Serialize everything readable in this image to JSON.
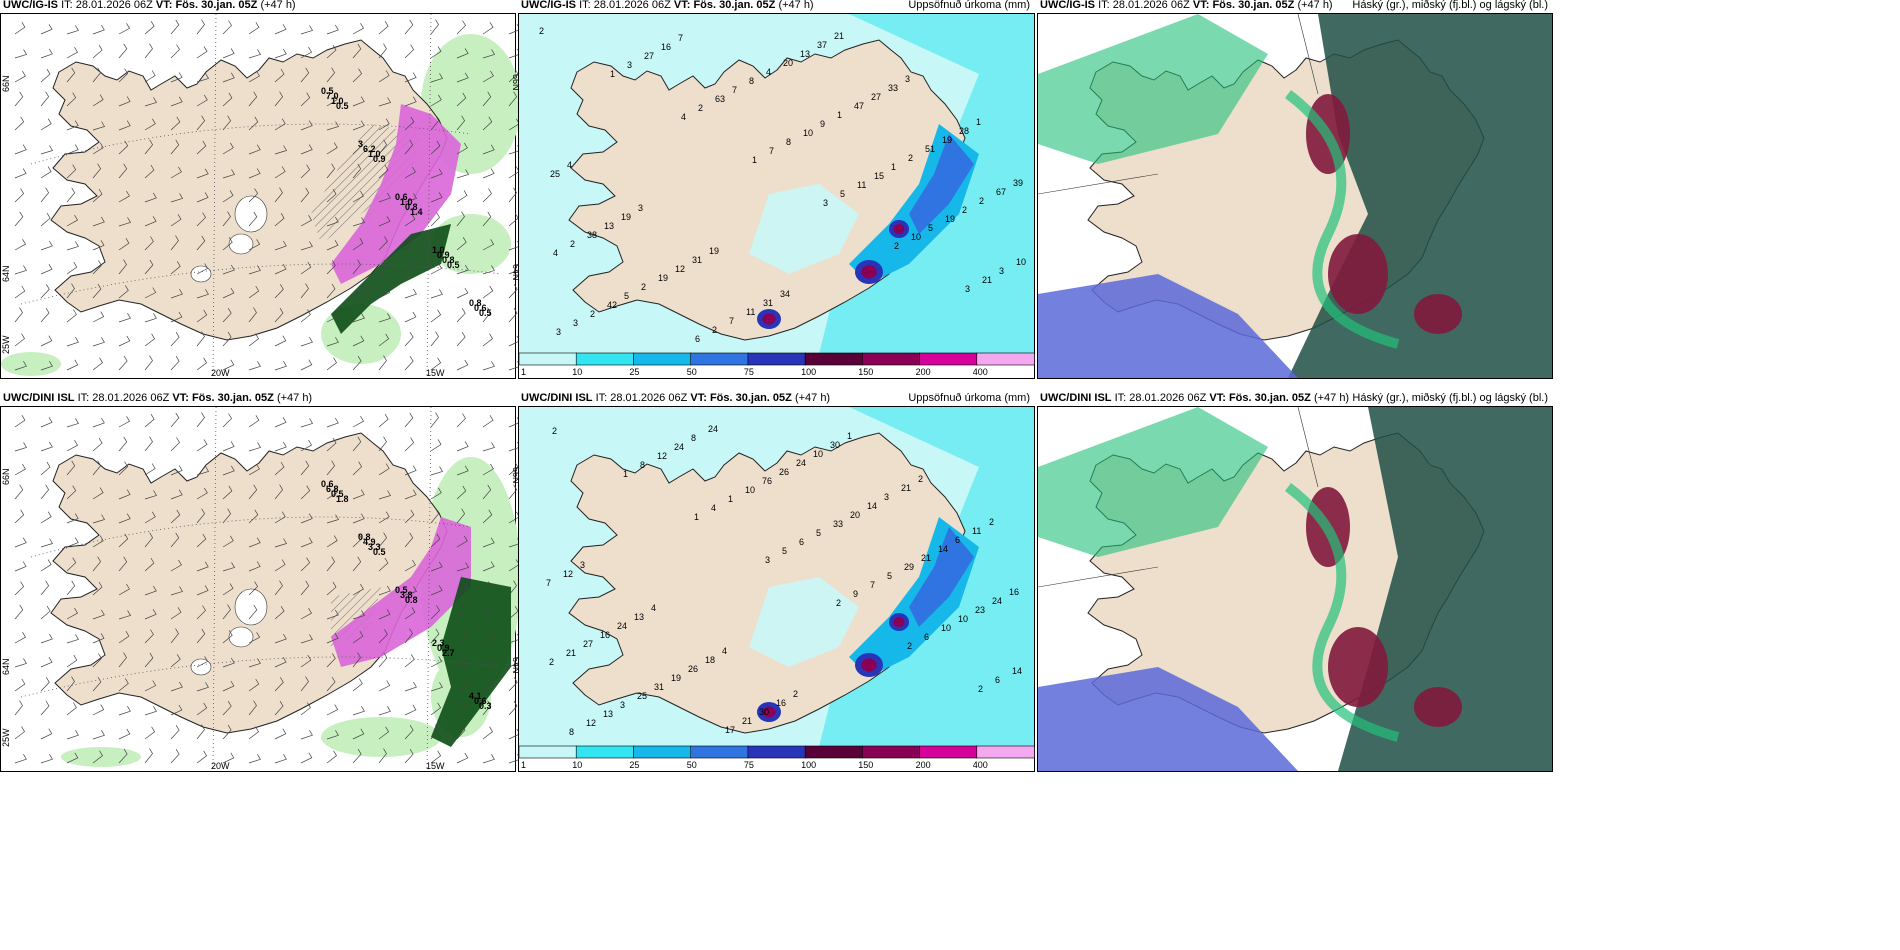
{
  "rows": [
    {
      "model": "UWC/IG-IS"
    },
    {
      "model": "UWC/DINI ISL"
    }
  ],
  "it_label": "IT:",
  "it_value": "28.01.2026 06Z",
  "vt_label": "VT:",
  "vt_value": "Fös. 30.jan. 05Z",
  "lead": "(+47 h)",
  "titles": {
    "wind": "",
    "precip": "Uppsöfnuð úrkoma (mm)",
    "cloud": "Háský (gr.), miðský (fj.bl.) og lágský (bl.)"
  },
  "axis_labels": {
    "lon_20w": "20W",
    "lon_15w": "15W",
    "lat_66n": "66N",
    "lat_64n": "64N",
    "lat_25w": "25W",
    "lat_right_66": "66N",
    "lat_right_64": "64N"
  },
  "colorbar": {
    "ticks": [
      "1",
      "10",
      "25",
      "50",
      "75",
      "100",
      "150",
      "200",
      "400"
    ],
    "colors": [
      "#c8f7f7",
      "#33e5f0",
      "#15b8e8",
      "#2f74e0",
      "#2835b8",
      "#5a0038",
      "#8a0055",
      "#d6009a",
      "#f3a8f0"
    ]
  },
  "colors": {
    "land": "#eedfcd",
    "sea_precip": "#c8f7f7",
    "snow_pink": "#d966d9",
    "green_dark": "#0c4c16",
    "green_light": "#c7efc0",
    "cloud_dark": "#1f4f45",
    "cloud_blue": "#5b6ad8",
    "cloud_red": "#801a3c",
    "cloud_green": "#22c07a"
  },
  "wind_values_top": [
    "0.5",
    "3",
    "0.6",
    "1.0",
    "0.8",
    "7.0",
    "6.2",
    "1.0",
    "0.9",
    "0.6",
    "1.0",
    "1.0",
    "0.8",
    "0.8",
    "0.5",
    "0.5",
    "0.9",
    "1.4",
    "0.5"
  ],
  "wind_values_bottom": [
    "0.6",
    "0.8",
    "0.5",
    "2.3",
    "4.1",
    "6.8",
    "4.9",
    "3.8",
    "0.9",
    "0.6",
    "0.5",
    "3.3",
    "0.8",
    "2.7",
    "0.3",
    "1.8",
    "0.5"
  ],
  "precip_values_top": [
    "2",
    "1",
    "4",
    "1",
    "3",
    "2",
    "3",
    "3",
    "3",
    "2",
    "7",
    "5",
    "10",
    "21",
    "3",
    "27",
    "63",
    "8",
    "11",
    "5",
    "3",
    "2",
    "16",
    "7",
    "10",
    "15",
    "19",
    "10",
    "42",
    "7",
    "8",
    "9",
    "1",
    "2",
    "4",
    "5",
    "6",
    "4",
    "1",
    "2",
    "2",
    "2",
    "2",
    "2",
    "20",
    "47",
    "51",
    "67",
    "38",
    "19",
    "7",
    "13",
    "27",
    "19",
    "39",
    "13",
    "12",
    "11",
    "37",
    "33",
    "28",
    "25",
    "19",
    "31",
    "31",
    "21",
    "3",
    "1",
    "4",
    "3",
    "19",
    "34"
  ],
  "precip_values_bottom": [
    "2",
    "1",
    "1",
    "3",
    "2",
    "2",
    "2",
    "8",
    "8",
    "4",
    "5",
    "9",
    "6",
    "6",
    "12",
    "12",
    "1",
    "6",
    "7",
    "10",
    "14",
    "13",
    "24",
    "10",
    "5",
    "5",
    "10",
    "2",
    "3",
    "8",
    "76",
    "33",
    "29",
    "23",
    "21",
    "25",
    "24",
    "26",
    "20",
    "21",
    "24",
    "27",
    "31",
    "17",
    "24",
    "14",
    "14",
    "16",
    "16",
    "19",
    "21",
    "10",
    "3",
    "6",
    "7",
    "24",
    "26",
    "30",
    "30",
    "21",
    "11",
    "12",
    "13",
    "18",
    "16",
    "1",
    "2",
    "2",
    "3",
    "4",
    "4",
    "2"
  ]
}
